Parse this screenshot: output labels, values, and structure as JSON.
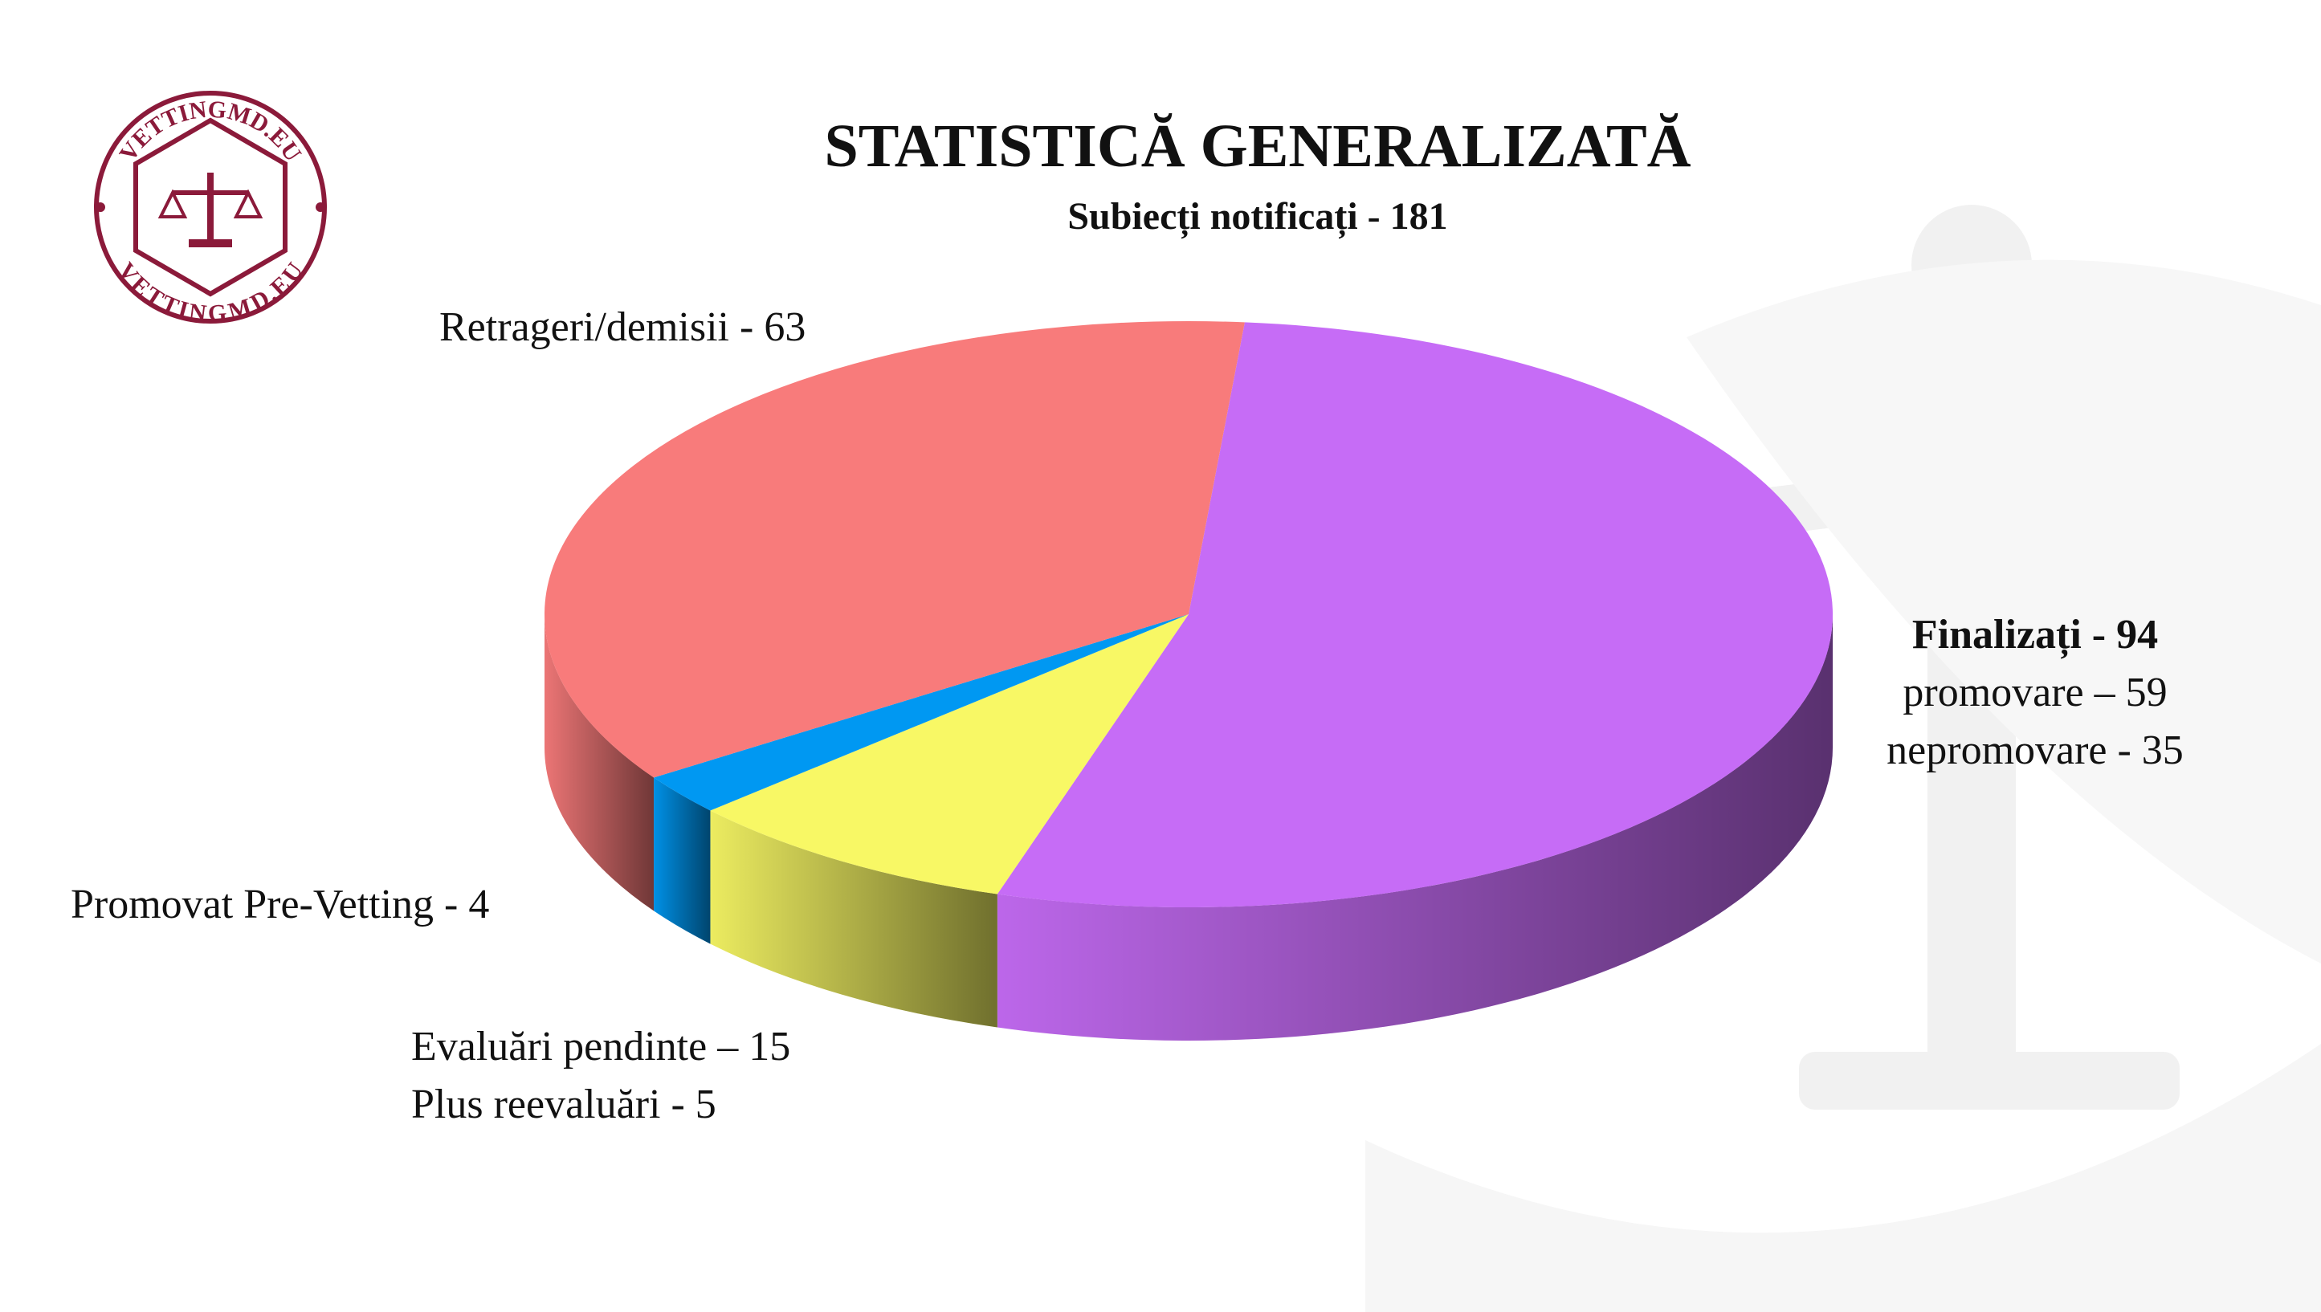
{
  "chart_data": {
    "type": "pie",
    "title": "STATISTICĂ GENERALIZATĂ",
    "subtitle": "Subiecți notificați - 181",
    "values": [
      94,
      15,
      4,
      63
    ],
    "colors": [
      "#c66cf6",
      "#f8f865",
      "#0098f2",
      "#f87b7b"
    ],
    "labels": [
      [
        "Finalizați - 94",
        "promovare – 59",
        "nepromovare - 35"
      ],
      [
        "Evaluări pendinte – 15",
        "Plus reevaluări - 5"
      ],
      [
        "Promovat Pre-Vetting - 4"
      ],
      [
        "Retrageri/demisii - 63"
      ]
    ]
  },
  "logo": {
    "text": "VETTINGMD.EU"
  }
}
